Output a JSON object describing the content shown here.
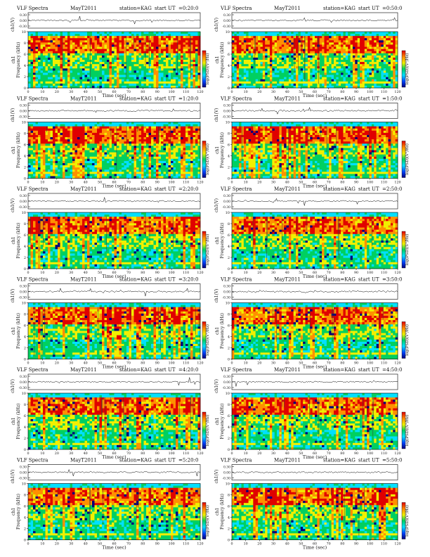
{
  "figure": {
    "panel_label": "VLF Spectra",
    "date": "MayT2011",
    "station": "station=KAG",
    "start_prefix": "start  UT"
  },
  "common": {
    "ch_label": "ch1(V)",
    "ch_ticks": [
      "0.30",
      "0.00",
      "-0.30"
    ],
    "ylabel_main": "ch1",
    "ylabel_sub": "Frequency (kHz)",
    "freq_ticks": [
      0,
      2,
      4,
      6,
      8,
      10
    ],
    "time_ticks": [
      0,
      10,
      20,
      30,
      40,
      50,
      60,
      70,
      80,
      90,
      100,
      110,
      120
    ],
    "xlabel": "Time (sec)",
    "colorbar_label": "log(PSD)(V²/Hz)"
  },
  "chart_data": [
    {
      "type": "heatmap",
      "start": "=0:20:0",
      "xlim": [
        0,
        120
      ],
      "ylim": [
        0,
        10
      ]
    },
    {
      "type": "heatmap",
      "start": "=0:50:0",
      "xlim": [
        0,
        120
      ],
      "ylim": [
        0,
        10
      ]
    },
    {
      "type": "heatmap",
      "start": "=1:20:0",
      "xlim": [
        0,
        120
      ],
      "ylim": [
        0,
        10
      ]
    },
    {
      "type": "heatmap",
      "start": "=1:50:0",
      "xlim": [
        0,
        120
      ],
      "ylim": [
        0,
        10
      ]
    },
    {
      "type": "heatmap",
      "start": "=2:20:0",
      "xlim": [
        0,
        120
      ],
      "ylim": [
        0,
        10
      ]
    },
    {
      "type": "heatmap",
      "start": "=2:50:0",
      "xlim": [
        0,
        120
      ],
      "ylim": [
        0,
        10
      ]
    },
    {
      "type": "heatmap",
      "start": "=3:20:0",
      "xlim": [
        0,
        120
      ],
      "ylim": [
        0,
        10
      ]
    },
    {
      "type": "heatmap",
      "start": "=3:50:0",
      "xlim": [
        0,
        120
      ],
      "ylim": [
        0,
        10
      ]
    },
    {
      "type": "heatmap",
      "start": "=4:20:0",
      "xlim": [
        0,
        120
      ],
      "ylim": [
        0,
        10
      ]
    },
    {
      "type": "heatmap",
      "start": "=4:50:0",
      "xlim": [
        0,
        120
      ],
      "ylim": [
        0,
        10
      ]
    },
    {
      "type": "heatmap",
      "start": "=5:20:0",
      "xlim": [
        0,
        120
      ],
      "ylim": [
        0,
        10
      ]
    },
    {
      "type": "heatmap",
      "start": "=5:50:0",
      "xlim": [
        0,
        120
      ],
      "ylim": [
        0,
        10
      ]
    }
  ],
  "colors": {
    "colormap": [
      "#00007a",
      "#0044ff",
      "#00e0ff",
      "#00d060",
      "#f0f000",
      "#ff9000",
      "#e00000"
    ]
  }
}
